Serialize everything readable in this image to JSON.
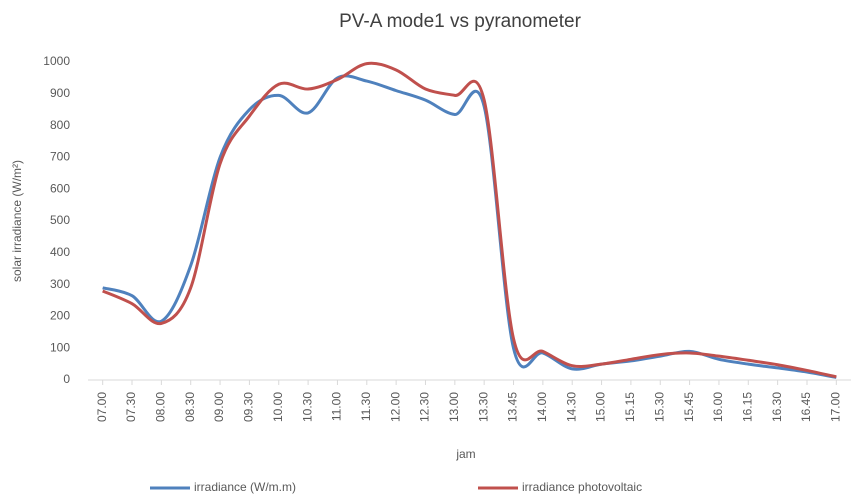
{
  "chart_data": {
    "type": "line",
    "title": "PV-A mode1 vs pyranometer",
    "x_label": "jam",
    "y_label": "solar irradiance (W/m²)",
    "categories": [
      "07.00",
      "07.30",
      "08.00",
      "08.30",
      "09.00",
      "09.30",
      "10.00",
      "10.30",
      "11.00",
      "11.30",
      "12.00",
      "12.30",
      "13.00",
      "13.30",
      "13.45",
      "14.00",
      "14.30",
      "15.00",
      "15.15",
      "15.30",
      "15.45",
      "16.00",
      "16.15",
      "16.30",
      "16.45",
      "17.00"
    ],
    "series": [
      {
        "name": "irradiance (W/m.m)",
        "color": "#4f81bd",
        "values": [
          290,
          265,
          185,
          360,
          700,
          850,
          895,
          840,
          950,
          940,
          910,
          880,
          835,
          860,
          100,
          85,
          35,
          50,
          60,
          75,
          90,
          65,
          50,
          38,
          25,
          8
        ]
      },
      {
        "name": "irradiance photovoltaic",
        "color": "#c0504d",
        "values": [
          280,
          240,
          178,
          290,
          680,
          830,
          930,
          915,
          945,
          995,
          975,
          915,
          895,
          880,
          130,
          90,
          45,
          50,
          65,
          80,
          85,
          75,
          62,
          48,
          30,
          10
        ]
      }
    ],
    "ylim": [
      0,
      1000
    ],
    "yticks": [
      0,
      100,
      200,
      300,
      400,
      500,
      600,
      700,
      800,
      900,
      1000
    ],
    "grid": false,
    "legend": "bottom"
  }
}
